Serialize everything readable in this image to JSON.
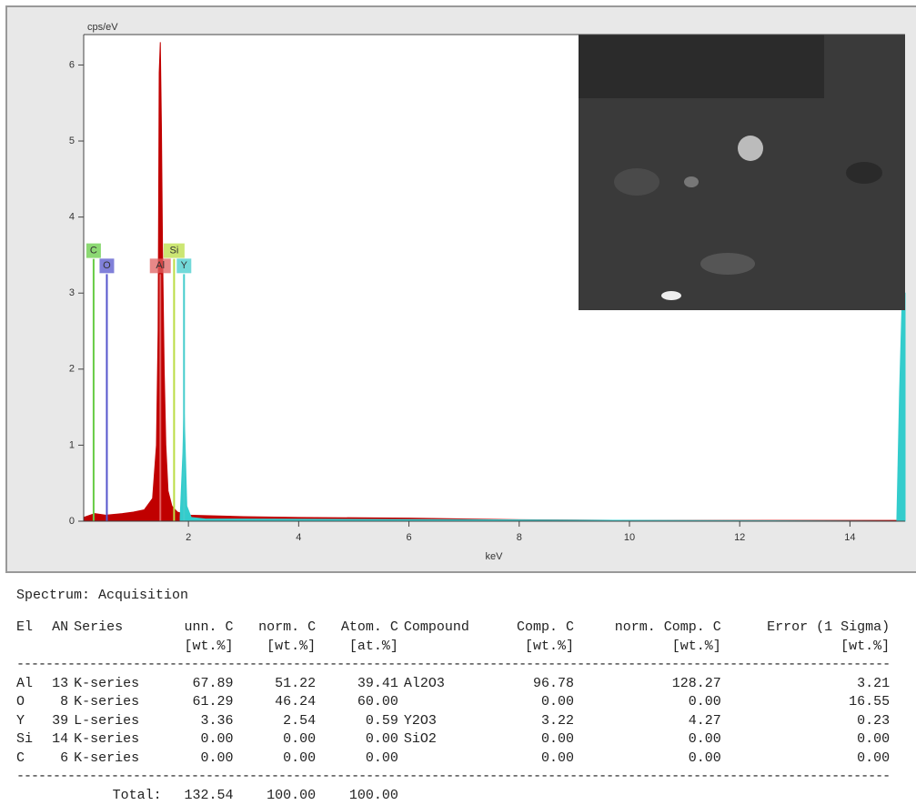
{
  "chart_data": {
    "type": "area",
    "y_label": "cps/eV",
    "x_label": "keV",
    "xlim": [
      0.1,
      15
    ],
    "ylim": [
      0,
      6.4
    ],
    "xticks": [
      2,
      4,
      6,
      8,
      10,
      12,
      14
    ],
    "yticks": [
      0,
      1,
      2,
      3,
      4,
      5,
      6
    ],
    "series": [
      {
        "color": "#c00000",
        "x": [
          0.1,
          0.3,
          0.5,
          0.8,
          1.0,
          1.2,
          1.35,
          1.42,
          1.45,
          1.47,
          1.49,
          1.51,
          1.53,
          1.56,
          1.59,
          1.63,
          1.7,
          1.8,
          2.0,
          3.0,
          4.0,
          6.0,
          8.0,
          10.0,
          12.0,
          14.9
        ],
        "values": [
          0.05,
          0.1,
          0.08,
          0.1,
          0.12,
          0.15,
          0.3,
          1.0,
          2.5,
          5.9,
          6.3,
          5.2,
          3.6,
          2.0,
          1.0,
          0.4,
          0.2,
          0.12,
          0.08,
          0.06,
          0.05,
          0.04,
          0.02,
          0.01,
          0.01,
          0.01
        ]
      },
      {
        "color": "#33cccc",
        "x": [
          1.85,
          1.9,
          1.92,
          1.94,
          1.97,
          2.05,
          2.3,
          14.85,
          14.9,
          14.95,
          15.0
        ],
        "values": [
          0.05,
          0.9,
          1.5,
          1.0,
          0.2,
          0.05,
          0.03,
          0.0,
          1.7,
          3.0,
          3.0
        ]
      }
    ],
    "markers": [
      {
        "label": "C",
        "x": 0.28,
        "height": 3.45,
        "color": "#66cc44"
      },
      {
        "label": "O",
        "x": 0.52,
        "height": 3.25,
        "color": "#5555cc"
      },
      {
        "label": "Al",
        "x": 1.49,
        "height": 3.25,
        "color": "#e06060"
      },
      {
        "label": "Si",
        "x": 1.74,
        "height": 3.45,
        "color": "#bbdd44"
      },
      {
        "label": "Y",
        "x": 1.92,
        "height": 3.25,
        "color": "#44cccc"
      }
    ]
  },
  "report": {
    "title": "Spectrum: Acquisition",
    "header": [
      [
        "El",
        "AN",
        "Series",
        "unn. C",
        "norm. C",
        "Atom. C",
        "Compound",
        "Comp. C",
        "norm. Comp. C",
        "Error (1 Sigma)"
      ],
      [
        null,
        null,
        null,
        "[wt.%]",
        "[wt.%]",
        "[at.%]",
        null,
        "[wt.%]",
        "[wt.%]",
        "[wt.%]"
      ]
    ],
    "rows": [
      [
        "Al",
        "13",
        "K-series",
        "67.89",
        "51.22",
        "39.41",
        "Al2O3",
        "96.78",
        "128.27",
        "3.21"
      ],
      [
        "O",
        "8",
        "K-series",
        "61.29",
        "46.24",
        "60.00",
        null,
        "0.00",
        "0.00",
        "16.55"
      ],
      [
        "Y",
        "39",
        "L-series",
        "3.36",
        "2.54",
        "0.59",
        "Y2O3",
        "3.22",
        "4.27",
        "0.23"
      ],
      [
        "Si",
        "14",
        "K-series",
        "0.00",
        "0.00",
        "0.00",
        "SiO2",
        "0.00",
        "0.00",
        "0.00"
      ],
      [
        "C",
        "6",
        "K-series",
        "0.00",
        "0.00",
        "0.00",
        null,
        "0.00",
        "0.00",
        "0.00"
      ]
    ],
    "total": [
      "Total:",
      "132.54",
      "100.00",
      "100.00"
    ]
  }
}
